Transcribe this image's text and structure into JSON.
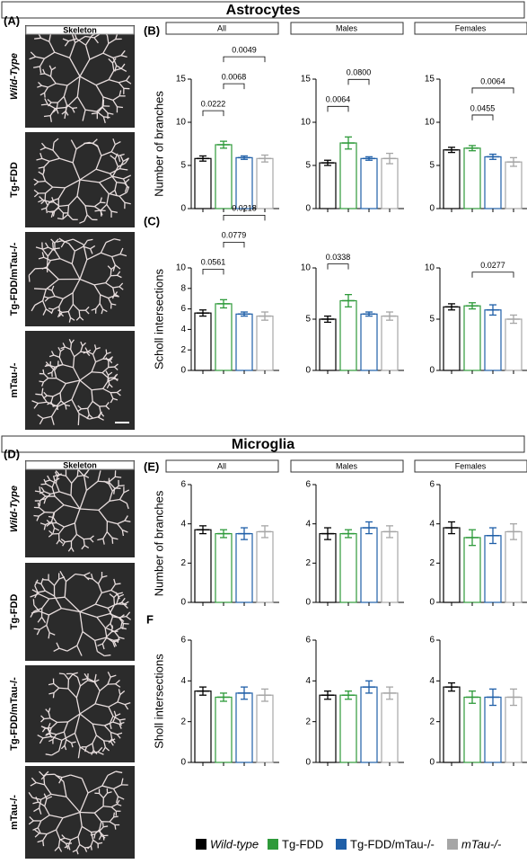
{
  "headers": [
    "Astrocytes",
    "Microglia"
  ],
  "panels": [
    {
      "label": "(A)",
      "image_title": "Skeleton",
      "rows": [
        "Wild-Type",
        "Tg-FDD",
        "Tg-FDD/mTau-/-",
        "mTau-/-"
      ]
    },
    {
      "label": "(D)",
      "image_title": "Skeleton",
      "rows": [
        "Wild-Type",
        "Tg-FDD",
        "Tg-FDD/mTau-/-",
        "mTau-/-"
      ]
    }
  ],
  "legend": [
    {
      "name": "Wild-type",
      "color": "#000000"
    },
    {
      "name": "Tg-FDD",
      "color": "#2e9a3a"
    },
    {
      "name": "Tg-FDD/mTau-/-",
      "color": "#1f5fa8"
    },
    {
      "name": "mTau-/-",
      "color": "#a6a6a6"
    }
  ],
  "chart_data": [
    {
      "type": "bar",
      "panel": "(B)",
      "title": "All",
      "ylabel": "Number of branches",
      "ylim": [
        0,
        15
      ],
      "yticks": [
        0,
        5,
        10,
        15
      ],
      "values": [
        5.8,
        7.4,
        5.9,
        5.8
      ],
      "errors": [
        0.3,
        0.4,
        0.2,
        0.4
      ],
      "annotations": [
        {
          "text": "0.0222",
          "pair": [
            0,
            1
          ]
        },
        {
          "text": "0.0068",
          "pair": [
            1,
            2
          ]
        },
        {
          "text": "0.0049",
          "pair": [
            1,
            3
          ]
        }
      ]
    },
    {
      "type": "bar",
      "title": "Males",
      "ylim": [
        0,
        15
      ],
      "yticks": [
        0,
        5,
        10,
        15
      ],
      "values": [
        5.3,
        7.6,
        5.8,
        5.8
      ],
      "errors": [
        0.3,
        0.7,
        0.2,
        0.6
      ],
      "annotations": [
        {
          "text": "0.0064",
          "pair": [
            0,
            1
          ]
        },
        {
          "text": "0.0800",
          "pair": [
            1,
            2
          ]
        }
      ]
    },
    {
      "type": "bar",
      "title": "Females",
      "ylim": [
        0,
        15
      ],
      "yticks": [
        0,
        5,
        10,
        15
      ],
      "values": [
        6.8,
        7.0,
        6.0,
        5.4
      ],
      "errors": [
        0.3,
        0.3,
        0.3,
        0.5
      ],
      "annotations": [
        {
          "text": "0.0455",
          "pair": [
            1,
            2
          ]
        },
        {
          "text": "0.0064",
          "pair": [
            1,
            3
          ]
        }
      ]
    },
    {
      "type": "bar",
      "panel": "(C)",
      "ylabel": "Scholl intersections",
      "ylim": [
        0,
        10
      ],
      "yticks": [
        0,
        2,
        4,
        6,
        8,
        10
      ],
      "values": [
        5.6,
        6.5,
        5.5,
        5.3
      ],
      "errors": [
        0.3,
        0.4,
        0.2,
        0.4
      ],
      "annotations": [
        {
          "text": "0.0561",
          "pair": [
            0,
            1
          ]
        },
        {
          "text": "0.0779",
          "pair": [
            1,
            2
          ]
        },
        {
          "text": "0.0218",
          "pair": [
            1,
            3
          ]
        }
      ]
    },
    {
      "type": "bar",
      "ylim": [
        0,
        10
      ],
      "yticks": [
        0,
        5,
        10
      ],
      "values": [
        5.0,
        6.8,
        5.5,
        5.3
      ],
      "errors": [
        0.3,
        0.6,
        0.2,
        0.4
      ],
      "annotations": [
        {
          "text": "0.0338",
          "pair": [
            0,
            1
          ]
        }
      ]
    },
    {
      "type": "bar",
      "ylim": [
        0,
        10
      ],
      "yticks": [
        0,
        5,
        10
      ],
      "values": [
        6.2,
        6.3,
        5.9,
        5.0
      ],
      "errors": [
        0.3,
        0.3,
        0.5,
        0.4
      ],
      "annotations": [
        {
          "text": "0.0277",
          "pair": [
            1,
            3
          ]
        }
      ]
    },
    {
      "type": "bar",
      "panel": "(E)",
      "title": "All",
      "ylabel": "Number of branches",
      "ylim": [
        0,
        6
      ],
      "yticks": [
        0,
        2,
        4,
        6
      ],
      "values": [
        3.7,
        3.5,
        3.5,
        3.6
      ],
      "errors": [
        0.2,
        0.2,
        0.3,
        0.3
      ]
    },
    {
      "type": "bar",
      "title": "Males",
      "ylim": [
        0,
        6
      ],
      "yticks": [
        0,
        2,
        4,
        6
      ],
      "values": [
        3.5,
        3.5,
        3.8,
        3.6
      ],
      "errors": [
        0.3,
        0.2,
        0.3,
        0.3
      ]
    },
    {
      "type": "bar",
      "title": "Females",
      "ylim": [
        0,
        6
      ],
      "yticks": [
        0,
        2,
        4,
        6
      ],
      "values": [
        3.8,
        3.3,
        3.4,
        3.6
      ],
      "errors": [
        0.3,
        0.4,
        0.4,
        0.4
      ]
    },
    {
      "type": "bar",
      "panel": "F",
      "ylabel": "Sholl intersections",
      "ylim": [
        0,
        6
      ],
      "yticks": [
        0,
        2,
        4,
        6
      ],
      "values": [
        3.5,
        3.2,
        3.4,
        3.3
      ],
      "errors": [
        0.2,
        0.2,
        0.3,
        0.3
      ]
    },
    {
      "type": "bar",
      "ylim": [
        0,
        6
      ],
      "yticks": [
        0,
        2,
        4,
        6
      ],
      "values": [
        3.3,
        3.3,
        3.7,
        3.4
      ],
      "errors": [
        0.2,
        0.2,
        0.3,
        0.3
      ]
    },
    {
      "type": "bar",
      "ylim": [
        0,
        6
      ],
      "yticks": [
        0,
        2,
        4,
        6
      ],
      "values": [
        3.7,
        3.2,
        3.2,
        3.2
      ],
      "errors": [
        0.2,
        0.3,
        0.4,
        0.4
      ]
    }
  ]
}
